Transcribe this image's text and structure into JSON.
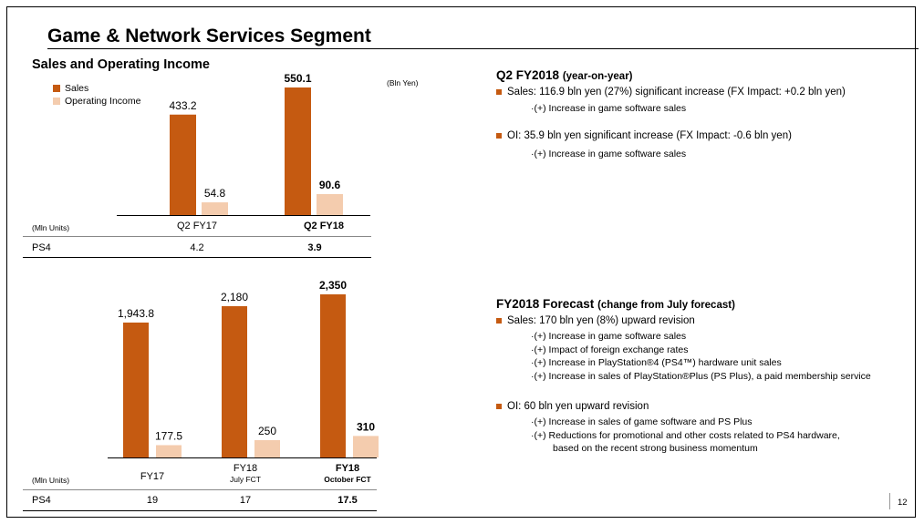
{
  "colors": {
    "sales": "#c55a11",
    "operating_income": "#f4ccae",
    "bullet": "#c55a11"
  },
  "title": "Game & Network Services Segment",
  "subtitle": "Sales and Operating Income",
  "legend": {
    "sales": "Sales",
    "operating_income": "Operating Income"
  },
  "unit_note": "(Bln Yen)",
  "chart_data": [
    {
      "type": "bar",
      "categories": [
        "Q2 FY17",
        "Q2 FY18"
      ],
      "series": [
        {
          "name": "Sales",
          "values": [
            433.2,
            550.1
          ]
        },
        {
          "name": "Operating Income",
          "values": [
            54.8,
            90.6
          ]
        }
      ],
      "value_labels": {
        "sales": [
          "433.2",
          "550.1"
        ],
        "operating_income": [
          "54.8",
          "90.6"
        ]
      },
      "bold_category_index": 1
    },
    {
      "type": "bar",
      "categories": [
        "FY17",
        "FY18",
        "FY18"
      ],
      "category_sublabels": [
        "",
        "July FCT",
        "October FCT"
      ],
      "series": [
        {
          "name": "Sales",
          "values": [
            1943.8,
            2180,
            2350
          ]
        },
        {
          "name": "Operating Income",
          "values": [
            177.5,
            250,
            310
          ]
        }
      ],
      "value_labels": {
        "sales": [
          "1,943.8",
          "2,180",
          "2,350"
        ],
        "operating_income": [
          "177.5",
          "250",
          "310"
        ]
      },
      "bold_category_index": 2
    }
  ],
  "top_table": {
    "unit": "(Mln Units)",
    "row_label": "PS4",
    "values": [
      "4.2",
      "3.9"
    ]
  },
  "bottom_table": {
    "unit": "(Mln Units)",
    "row_label": "PS4",
    "values": [
      "19",
      "17",
      "17.5"
    ]
  },
  "q2": {
    "title": "Q2 FY2018",
    "title_note": "(year-on-year)",
    "sales_line": "Sales: 116.9 bln yen (27%) significant increase (FX Impact: +0.2 bln yen)",
    "sales_items": [
      "·(+)  Increase in game software sales"
    ],
    "oi_line": "OI: 35.9 bln yen significant increase (FX Impact: -0.6 bln yen)",
    "oi_items": [
      "·(+)  Increase in game software sales"
    ]
  },
  "forecast": {
    "title": "FY2018 Forecast",
    "title_note": "(change from July forecast)",
    "sales_line": "Sales: 170 bln yen (8%) upward revision",
    "sales_items": [
      "·(+)  Increase in game software sales",
      "·(+)  Impact of foreign exchange rates",
      "·(+)  Increase in PlayStation®4 (PS4™) hardware unit sales",
      "·(+)  Increase in sales of PlayStation®Plus (PS Plus), a paid membership service"
    ],
    "oi_line": "OI: 60 bln yen upward revision",
    "oi_items": [
      "·(+)  Increase in sales of game software and PS Plus",
      "·(+)  Reductions for promotional and other costs related to PS4 hardware,",
      "based on the recent strong business momentum"
    ]
  },
  "page_number": "12"
}
